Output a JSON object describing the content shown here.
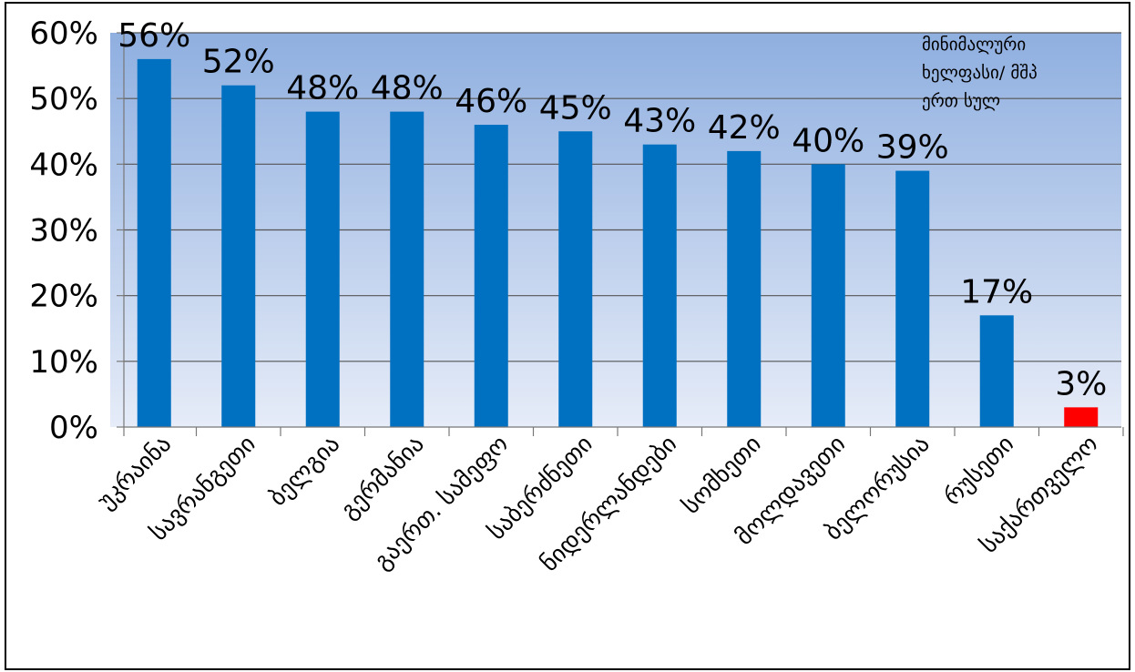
{
  "chart_data": {
    "type": "bar",
    "categories": [
      "უკრაინა",
      "სავრანგეთი",
      "ბელგია",
      "გერმანია",
      "გაერთ. სამეფო",
      "საბერძნეთი",
      "ნიდერლანდები",
      "სომხეთი",
      "მოლდავეთი",
      "ბელორუსია",
      "რუსეთი",
      "საქართველო"
    ],
    "values": [
      56,
      52,
      48,
      48,
      46,
      45,
      43,
      42,
      40,
      39,
      17,
      3
    ],
    "value_labels": [
      "56%",
      "52%",
      "48%",
      "48%",
      "46%",
      "45%",
      "43%",
      "42%",
      "40%",
      "39%",
      "17%",
      "3%"
    ],
    "bar_colors": [
      "#0070C0",
      "#0070C0",
      "#0070C0",
      "#0070C0",
      "#0070C0",
      "#0070C0",
      "#0070C0",
      "#0070C0",
      "#0070C0",
      "#0070C0",
      "#0070C0",
      "#FF0000"
    ],
    "ylim": [
      0,
      60
    ],
    "yticks": [
      0,
      10,
      20,
      30,
      40,
      50,
      60
    ],
    "ytick_labels": [
      "0%",
      "10%",
      "20%",
      "30%",
      "40%",
      "50%",
      "60%"
    ],
    "grid": true,
    "legend": "none",
    "annotation": [
      "მინიმალური",
      "ხელფასი/ მშპ",
      "ერთ სულ"
    ],
    "title": "",
    "xlabel": "",
    "ylabel": ""
  },
  "colors": {
    "bar": "#0070C0",
    "highlight": "#FF0000",
    "plot_bg_top": "#8FAFE0",
    "plot_bg_bottom": "#E6ECF8",
    "grid": "#555555"
  }
}
